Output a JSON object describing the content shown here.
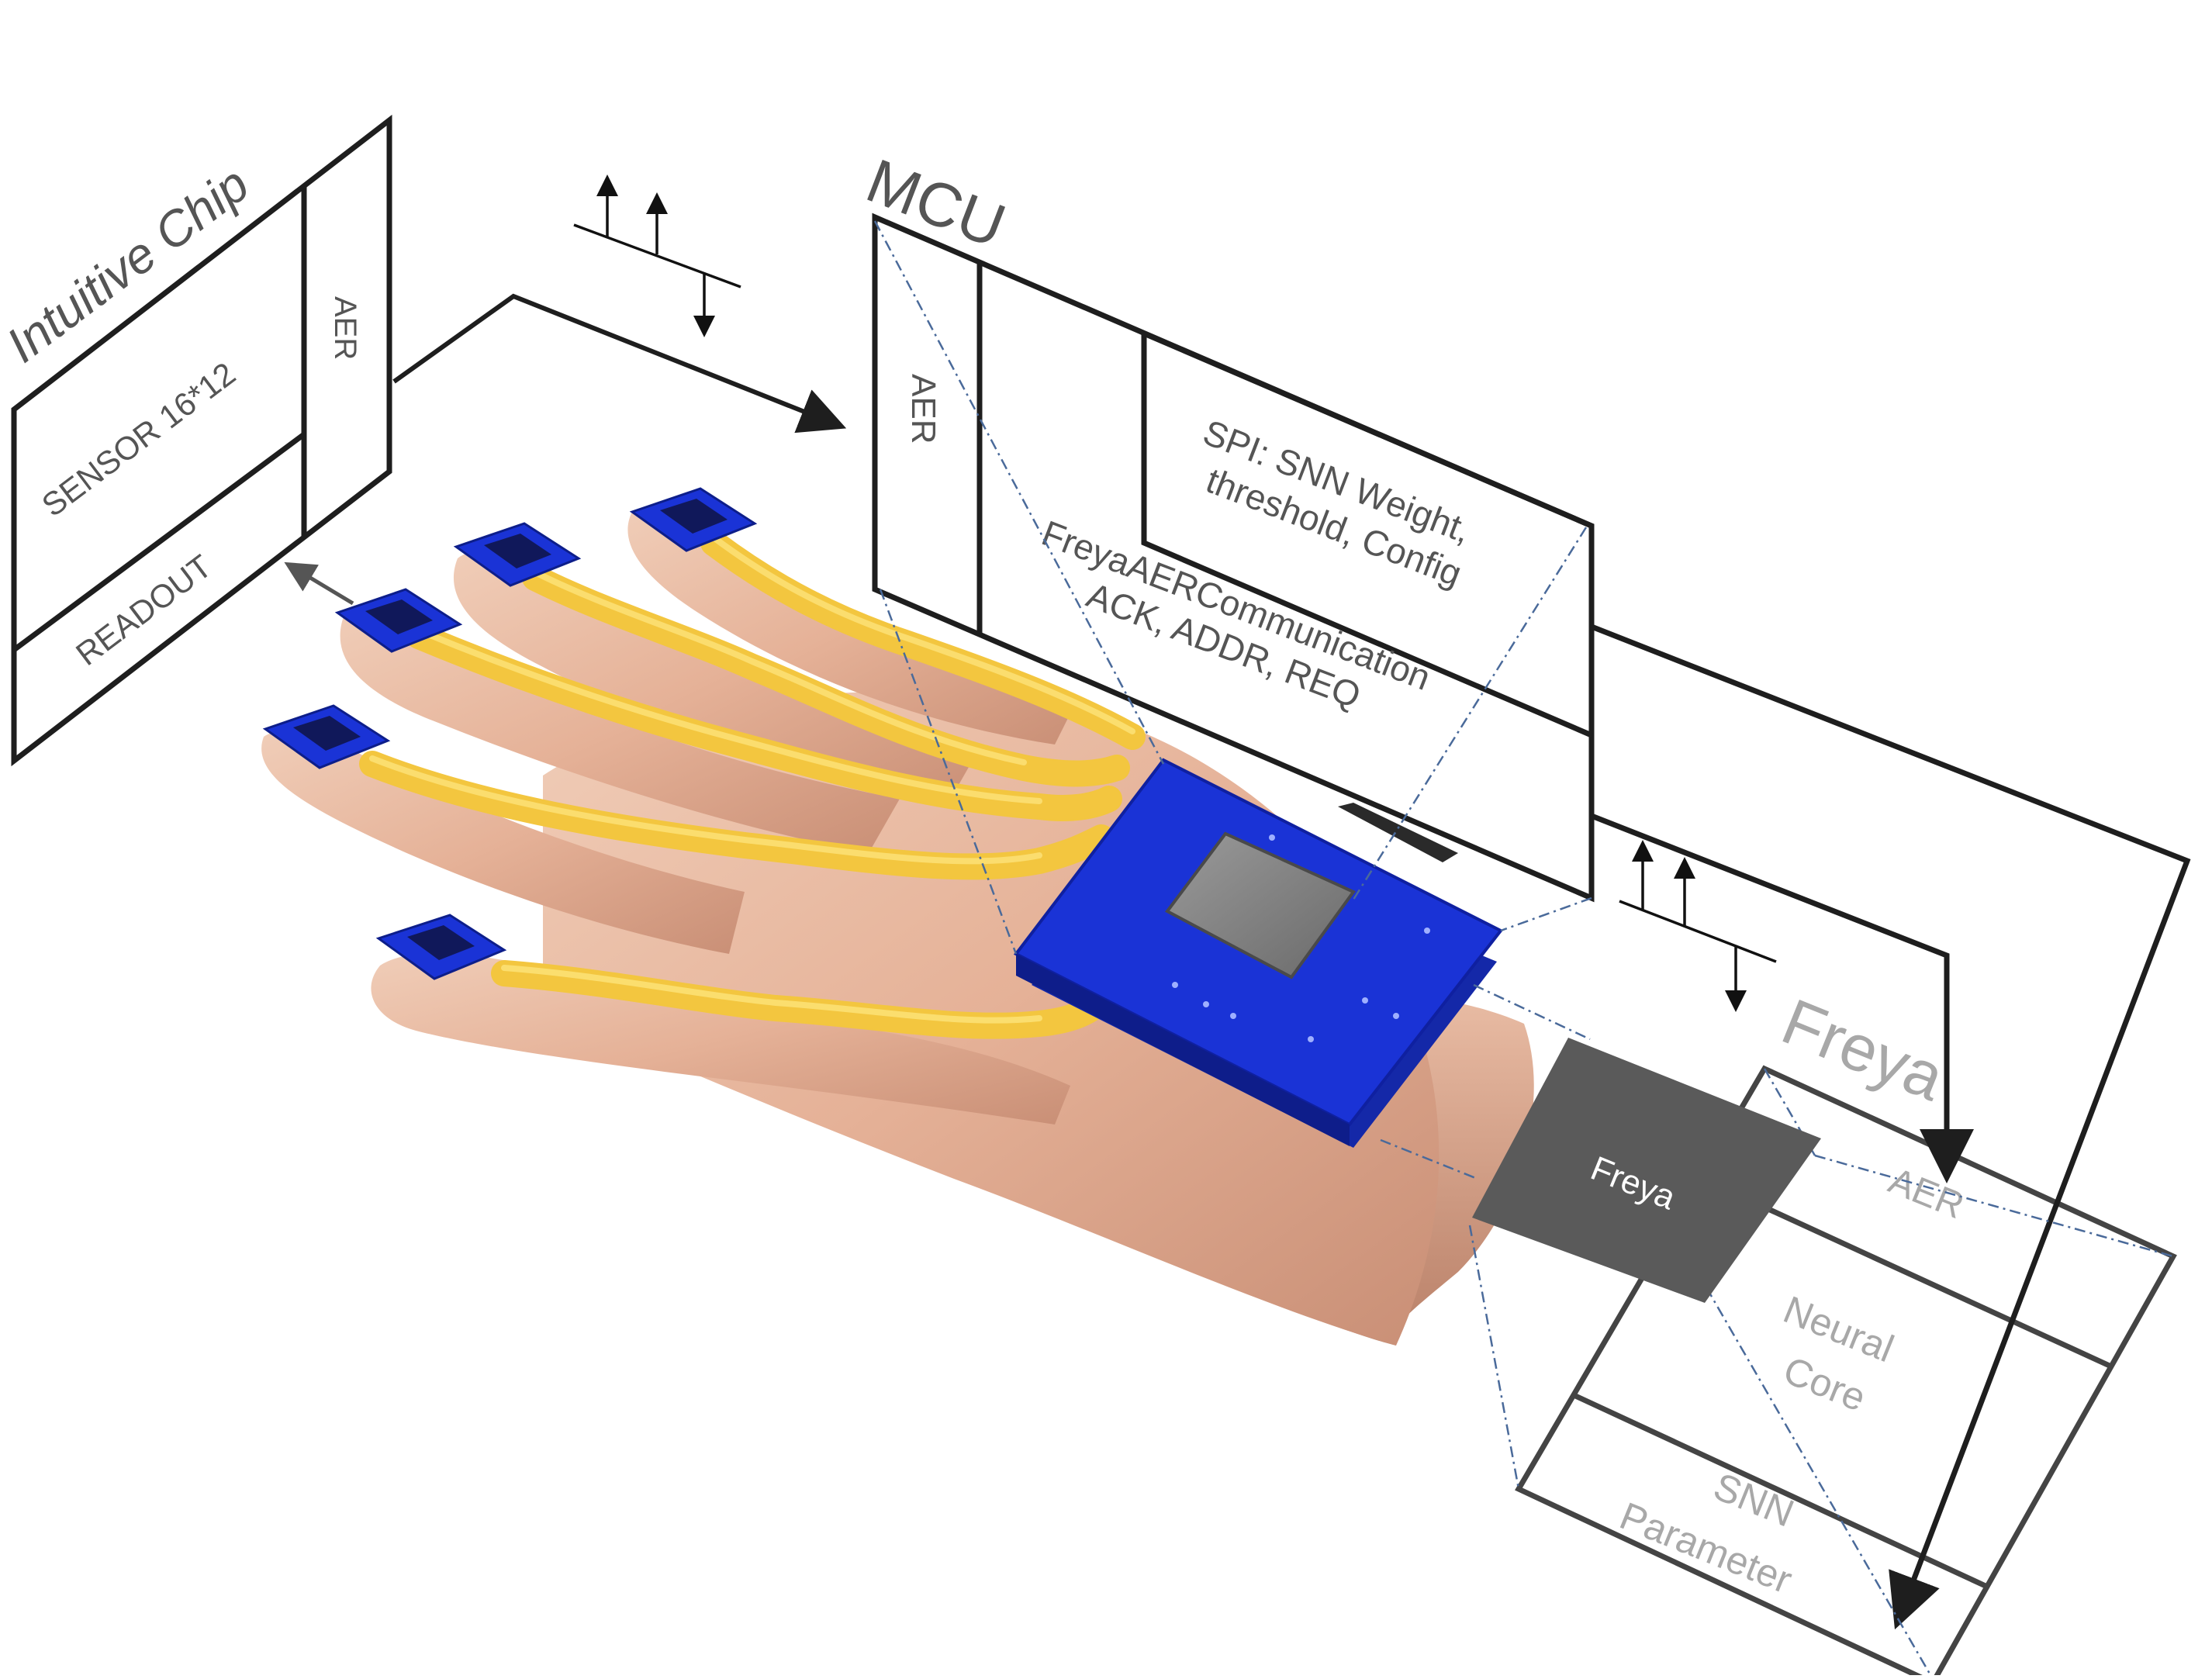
{
  "intuitive_chip": {
    "title": "Intuitive Chip",
    "sensor": "SENSOR 16*12",
    "readout": "READOUT",
    "aer": "AER"
  },
  "mcu": {
    "title": "MCU",
    "aer": "AER",
    "spi_line1": "SPI: SNN Weight,",
    "spi_line2": "threshold, Config",
    "comm_line1": "FreyaAERCommunication",
    "comm_line2": "ACK, ADDR, REQ"
  },
  "freya": {
    "chip_label": "Freya",
    "block_title": "Freya",
    "aer": "AER",
    "neural_line1": "Neural",
    "neural_line2": "Core",
    "snn_line1": "SNN",
    "snn_line2": "Parameter"
  },
  "colors": {
    "pcb_blue": "#1a33d6",
    "ribbon_gold": "#f3c63f",
    "skin": "#e7b79c",
    "freya_chip": "#5a5a5a",
    "line_dark": "#1e1e1e",
    "line_grey": "#555555",
    "dash_blue": "#4a6a9a"
  },
  "icons": [
    "handshake-arrows-icon",
    "hand-illustration-icon"
  ]
}
